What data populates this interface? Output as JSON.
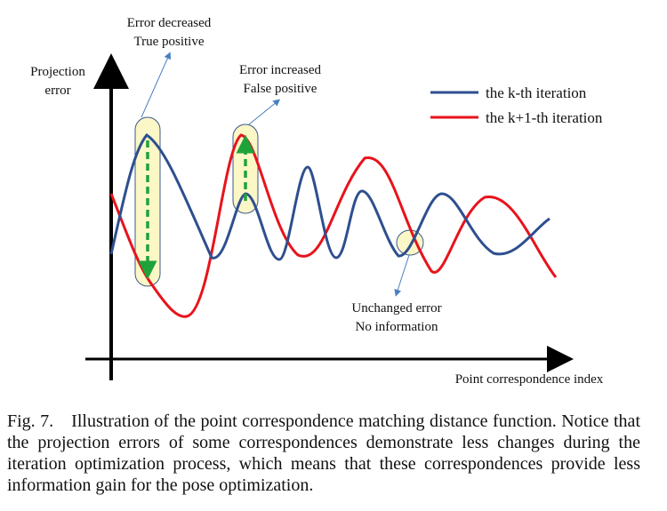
{
  "annotations": {
    "decreased_line1": "Error decreased",
    "decreased_line2": "True positive",
    "increased_line1": "Error increased",
    "increased_line2": "False positive",
    "unchanged_line1": "Unchanged error",
    "unchanged_line2": "No information"
  },
  "axes": {
    "y_label_line1": "Projection",
    "y_label_line2": "error",
    "x_label": "Point correspondence index"
  },
  "legend": {
    "series_k": "the k-th iteration",
    "series_k1": "the k+1-th iteration"
  },
  "colors": {
    "series_k": "#2e4f8f",
    "series_k1": "#e8131b",
    "highlight_fill": "#fbf7c6",
    "highlight_stroke": "#3b5a8a",
    "change_arrow": "#1fa23a",
    "pointer_arrow": "#4a7fc1"
  },
  "caption": "Fig. 7. Illustration of the point correspondence matching distance function. Notice that the projection errors of some correspondences demonstrate less changes during the iteration optimization process, which means that these correspondences provide less information gain for the pose optimization."
}
